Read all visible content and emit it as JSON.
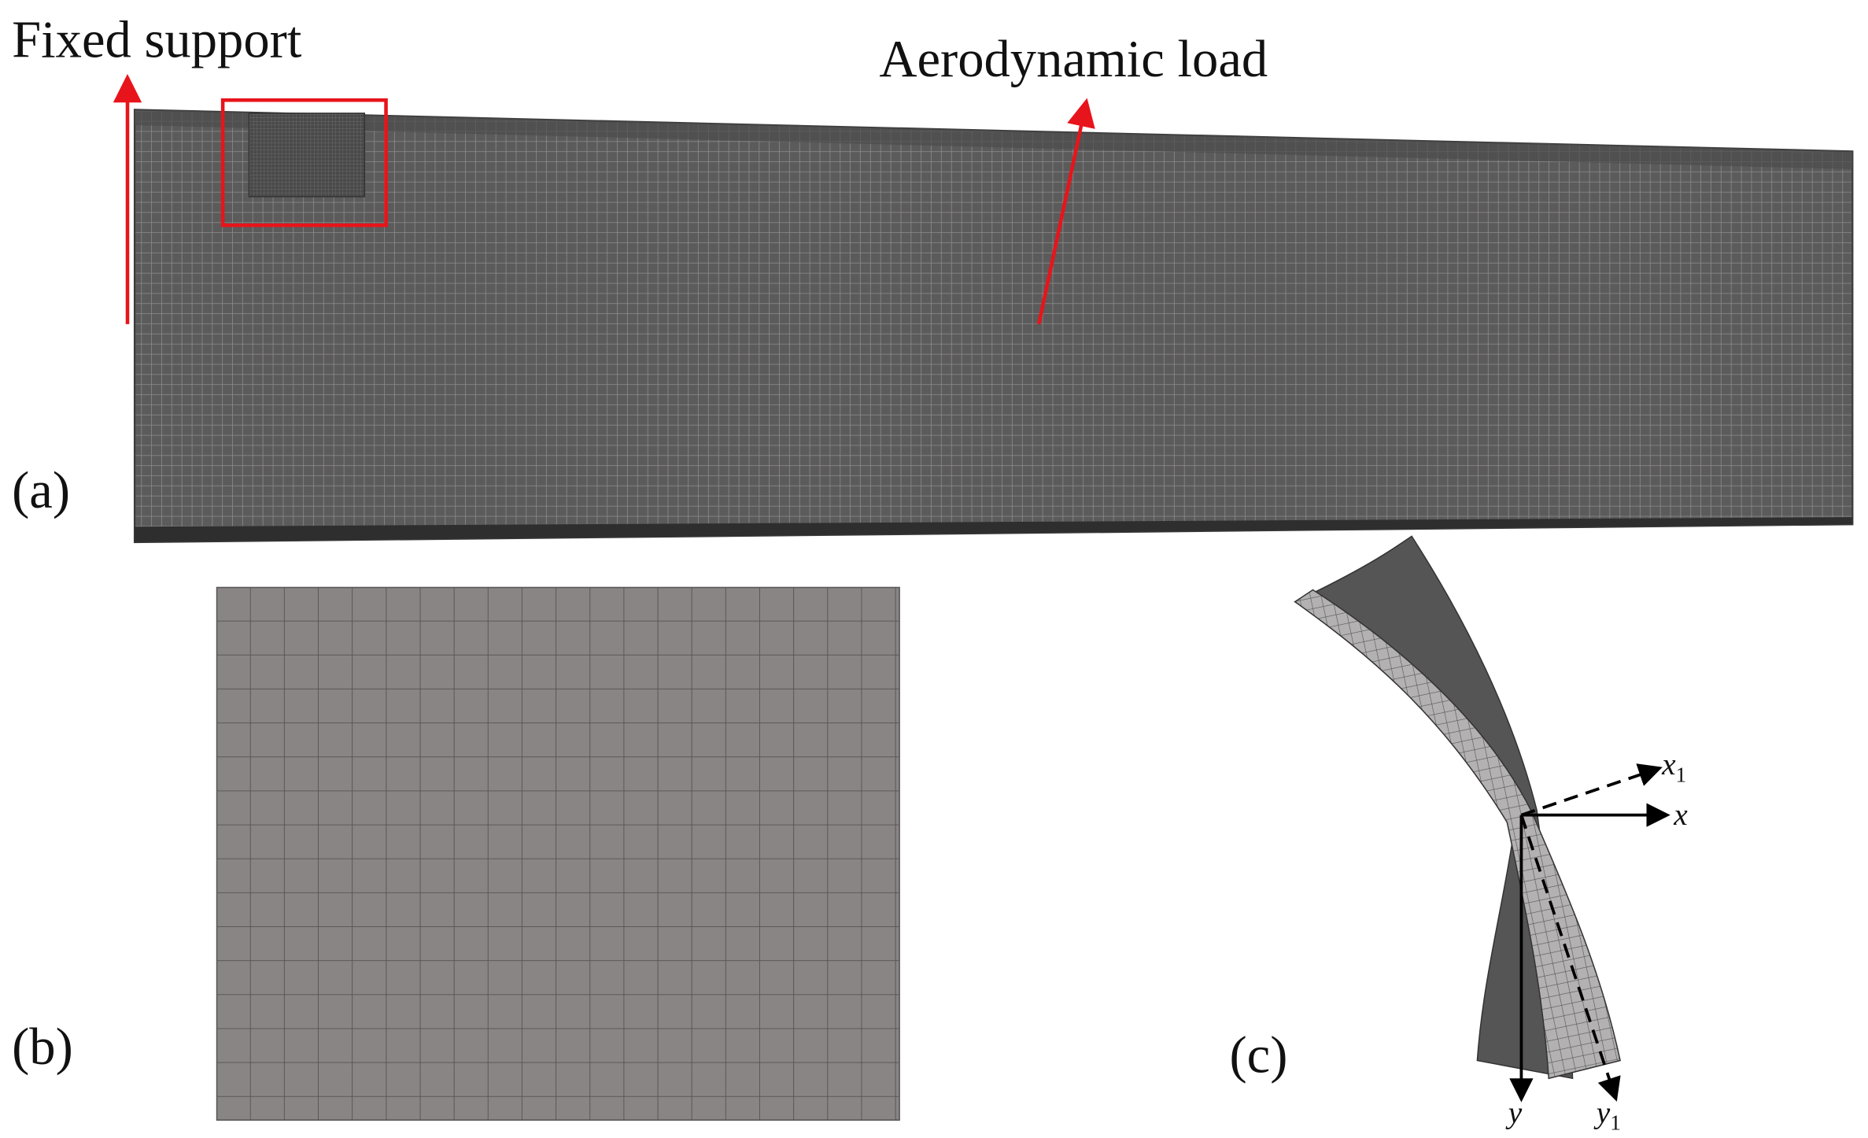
{
  "panel_a": {
    "label": "(a)",
    "fixed_support": "Fixed support",
    "aerodynamic_load": "Aerodynamic load"
  },
  "panel_b": {
    "label": "(b)"
  },
  "panel_c": {
    "label": "(c)",
    "axes": {
      "x": "x",
      "y": "y",
      "x1": {
        "base": "x",
        "sub": "1"
      },
      "y1": {
        "base": "y",
        "sub": "1"
      }
    }
  }
}
